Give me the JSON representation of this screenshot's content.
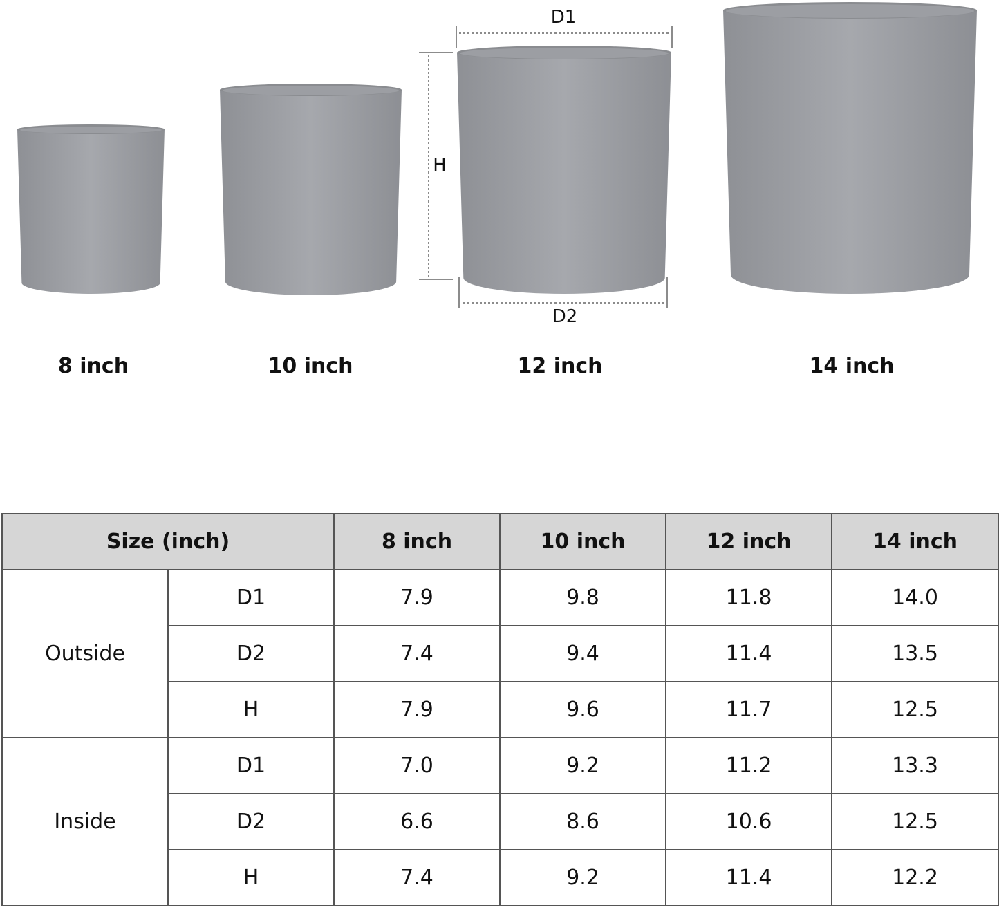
{
  "pot_color": "#9a9ca1",
  "pots": [
    {
      "label": "8 inch"
    },
    {
      "label": "10 inch"
    },
    {
      "label": "12 inch"
    },
    {
      "label": "14 inch"
    }
  ],
  "dimensions": {
    "d1": "D1",
    "d2": "D2",
    "h": "H"
  },
  "table": {
    "header": [
      "Size (inch)",
      "8 inch",
      "10 inch",
      "12 inch",
      "14 inch"
    ],
    "groups": [
      {
        "name": "Outside",
        "rows": [
          {
            "dim": "D1",
            "values": [
              "7.9",
              "9.8",
              "11.8",
              "14.0"
            ]
          },
          {
            "dim": "D2",
            "values": [
              "7.4",
              "9.4",
              "11.4",
              "13.5"
            ]
          },
          {
            "dim": "H",
            "values": [
              "7.9",
              "9.6",
              "11.7",
              "12.5"
            ]
          }
        ]
      },
      {
        "name": "Inside",
        "rows": [
          {
            "dim": "D1",
            "values": [
              "7.0",
              "9.2",
              "11.2",
              "13.3"
            ]
          },
          {
            "dim": "D2",
            "values": [
              "6.6",
              "8.6",
              "10.6",
              "12.5"
            ]
          },
          {
            "dim": "H",
            "values": [
              "7.4",
              "9.2",
              "11.4",
              "12.2"
            ]
          }
        ]
      }
    ]
  }
}
